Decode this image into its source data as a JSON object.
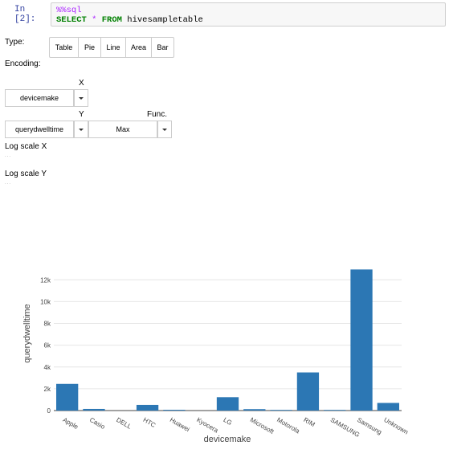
{
  "cell": {
    "prompt": "In [2]:",
    "magic": "%%sql",
    "line2_kw1": "SELECT",
    "line2_star": "*",
    "line2_kw2": "FROM",
    "line2_table": "hivesampletable"
  },
  "controls": {
    "type_label": "Type:",
    "type_buttons": [
      "Table",
      "Pie",
      "Line",
      "Area",
      "Bar"
    ],
    "encoding_label": "Encoding:",
    "x_label": "X",
    "x_value": "devicemake",
    "y_label": "Y",
    "y_value": "querydwelltime",
    "func_label": "Func.",
    "func_value": "Max",
    "logx_label": "Log scale X",
    "logy_label": "Log scale Y",
    "logx_dots": "...",
    "logy_dots": "..."
  },
  "chart_data": {
    "type": "bar",
    "categories": [
      "Apple",
      "Casio",
      "DELL",
      "HTC",
      "Huawei",
      "Kyocera",
      "LG",
      "Microsoft",
      "Motorola",
      "RIM",
      "SAMSUNG",
      "Samsung",
      "Unknown"
    ],
    "values": [
      2450,
      150,
      0,
      520,
      70,
      0,
      1230,
      130,
      60,
      3500,
      60,
      12950,
      700
    ],
    "xlabel": "devicemake",
    "ylabel": "querydwelltime",
    "ylim": [
      0,
      13200
    ],
    "yticks": [
      0,
      2000,
      4000,
      6000,
      8000,
      10000,
      12000
    ],
    "ytick_labels": [
      "0",
      "2k",
      "4k",
      "6k",
      "8k",
      "10k",
      "12k"
    ],
    "grid": true,
    "bar_color": "#2c77b4"
  }
}
